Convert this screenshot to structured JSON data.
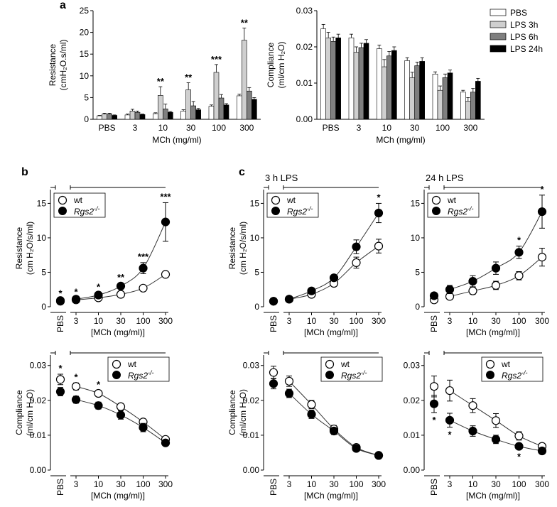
{
  "panel_labels": {
    "a": "a",
    "b": "b",
    "c": "c"
  },
  "colors": {
    "PBS": "#ffffff",
    "LPS 3h": "#cfcfcf",
    "LPS 6h": "#7f7f7f",
    "LPS 24h": "#000000"
  },
  "chart_data": [
    {
      "id": "a-resistance",
      "type": "bar",
      "panel": "a",
      "title": "",
      "xlabel": "MCh (mg/ml)",
      "ylabel": "Resistance",
      "ylabel2": "(cmH₂O.s/ml)",
      "categories": [
        "PBS",
        "3",
        "10",
        "30",
        "100",
        "300"
      ],
      "ylim": [
        0,
        25
      ],
      "yticks": [
        0,
        5,
        10,
        15,
        20,
        25
      ],
      "series": [
        {
          "name": "PBS",
          "values": [
            0.8,
            1.0,
            1.3,
            1.9,
            3.0,
            5.4
          ],
          "errors": [
            0.1,
            0.2,
            0.2,
            0.3,
            0.3,
            0.4
          ]
        },
        {
          "name": "LPS 3h",
          "values": [
            1.2,
            1.9,
            5.5,
            6.8,
            10.8,
            18.2
          ],
          "errors": [
            0.2,
            0.4,
            2.0,
            1.6,
            1.8,
            2.8
          ]
        },
        {
          "name": "LPS 6h",
          "values": [
            1.2,
            1.6,
            2.4,
            3.1,
            4.9,
            6.5
          ],
          "errors": [
            0.2,
            0.3,
            1.1,
            1.0,
            0.8,
            0.8
          ]
        },
        {
          "name": "LPS 24h",
          "values": [
            0.9,
            1.1,
            1.6,
            2.2,
            3.3,
            4.6
          ],
          "errors": [
            0.1,
            0.1,
            0.2,
            0.3,
            0.3,
            0.4
          ]
        }
      ],
      "annotations": [
        {
          "text": "**",
          "category": 2,
          "series": 1
        },
        {
          "text": "**",
          "category": 3,
          "series": 1
        },
        {
          "text": "***",
          "category": 4,
          "series": 1
        },
        {
          "text": "**",
          "category": 5,
          "series": 1
        }
      ]
    },
    {
      "id": "a-compliance",
      "type": "bar",
      "panel": "a",
      "title": "",
      "xlabel": "MCh (mg/ml)",
      "ylabel": "Compliance",
      "ylabel2": "(ml/cm H₂O)",
      "categories": [
        "PBS",
        "3",
        "10",
        "30",
        "100",
        "300"
      ],
      "ylim": [
        0,
        0.03
      ],
      "yticks": [
        0.0,
        0.01,
        0.02,
        0.03
      ],
      "ytick_labels": [
        "0.00",
        "0.01",
        "0.02",
        "0.03"
      ],
      "legend": [
        "PBS",
        "LPS 3h",
        "LPS 6h",
        "LPS 24h"
      ],
      "series": [
        {
          "name": "PBS",
          "values": [
            0.025,
            0.0225,
            0.0195,
            0.0162,
            0.0125,
            0.0075
          ],
          "errors": [
            0.0012,
            0.001,
            0.001,
            0.0008,
            0.0006,
            0.0005
          ]
        },
        {
          "name": "LPS 3h",
          "values": [
            0.0225,
            0.0185,
            0.0145,
            0.0115,
            0.008,
            0.005
          ],
          "errors": [
            0.0015,
            0.0015,
            0.002,
            0.0015,
            0.0012,
            0.001
          ]
        },
        {
          "name": "LPS 6h",
          "values": [
            0.0215,
            0.0198,
            0.0175,
            0.0148,
            0.0115,
            0.0075
          ],
          "errors": [
            0.0012,
            0.0012,
            0.0012,
            0.001,
            0.001,
            0.001
          ]
        },
        {
          "name": "LPS 24h",
          "values": [
            0.0225,
            0.021,
            0.019,
            0.016,
            0.0128,
            0.0105
          ],
          "errors": [
            0.001,
            0.001,
            0.001,
            0.001,
            0.0008,
            0.0008
          ]
        }
      ]
    },
    {
      "id": "b-resistance",
      "type": "scatter",
      "panel": "b",
      "title": "",
      "xlabel": "[MCh (mg/ml)]",
      "ylabel": "Resistance",
      "ylabel2": "(cm H₂O/s/ml)",
      "pbs_label": "PBS",
      "x_ticks": [
        "3",
        "10",
        "30",
        "100",
        "300"
      ],
      "ylim": [
        0,
        17
      ],
      "yticks": [
        0,
        5,
        10,
        15
      ],
      "legend": [
        "wt",
        "Rgs2"
      ],
      "legend_sup": "-/-",
      "series": [
        {
          "name": "wt",
          "pbs": 0.8,
          "pbs_err": 0.2,
          "values": [
            1.0,
            1.3,
            1.8,
            2.7,
            4.7
          ],
          "errors": [
            0.2,
            0.2,
            0.3,
            0.3,
            0.4
          ]
        },
        {
          "name": "Rgs2",
          "pbs": 0.9,
          "pbs_err": 0.2,
          "values": [
            1.1,
            1.7,
            3.0,
            5.6,
            12.3
          ],
          "errors": [
            0.2,
            0.3,
            0.4,
            0.8,
            2.8
          ]
        }
      ],
      "annotations": [
        {
          "text": "*",
          "index": -1
        },
        {
          "text": "*",
          "index": 0
        },
        {
          "text": "*",
          "index": 1
        },
        {
          "text": "**",
          "index": 2
        },
        {
          "text": "***",
          "index": 3
        },
        {
          "text": "***",
          "index": 4
        }
      ]
    },
    {
      "id": "c3-resistance",
      "type": "scatter",
      "panel": "c",
      "title": "3 h LPS",
      "xlabel": "[MCh (mg/ml)]",
      "ylabel": "Resistance",
      "ylabel2": "(cm H₂O/s/ml)",
      "pbs_label": "PBS",
      "x_ticks": [
        "3",
        "10",
        "30",
        "100",
        "300"
      ],
      "ylim": [
        0,
        17
      ],
      "yticks": [
        0,
        5,
        10,
        15
      ],
      "legend": [
        "wt",
        "Rgs2"
      ],
      "legend_sup": "-/-",
      "series": [
        {
          "name": "wt",
          "pbs": 0.8,
          "pbs_err": 0.2,
          "values": [
            1.1,
            1.8,
            3.4,
            6.4,
            8.8
          ],
          "errors": [
            0.2,
            0.2,
            0.4,
            0.8,
            1.0
          ]
        },
        {
          "name": "Rgs2",
          "pbs": 0.8,
          "pbs_err": 0.2,
          "values": [
            1.1,
            2.3,
            4.2,
            8.7,
            13.6
          ],
          "errors": [
            0.2,
            0.3,
            0.4,
            1.0,
            1.4
          ]
        }
      ],
      "annotations": [
        {
          "text": "*",
          "index": 4
        }
      ]
    },
    {
      "id": "c24-resistance",
      "type": "scatter",
      "panel": "c",
      "title": "24 h LPS",
      "xlabel": "[MCh (mg/ml)]",
      "ylabel": "",
      "ylabel2": "",
      "pbs_label": "PBS",
      "x_ticks": [
        "3",
        "10",
        "30",
        "100",
        "300"
      ],
      "ylim": [
        0,
        17
      ],
      "yticks": [
        0,
        5,
        10,
        15
      ],
      "legend": [
        "wt",
        "Rgs2"
      ],
      "legend_sup": "-/-",
      "series": [
        {
          "name": "wt",
          "pbs": 1.0,
          "pbs_err": 0.3,
          "values": [
            1.5,
            2.3,
            3.1,
            4.5,
            7.2
          ],
          "errors": [
            0.4,
            0.5,
            0.6,
            0.6,
            1.3
          ]
        },
        {
          "name": "Rgs2",
          "pbs": 1.6,
          "pbs_err": 0.3,
          "values": [
            2.5,
            3.7,
            5.6,
            7.9,
            13.8
          ],
          "errors": [
            0.6,
            0.8,
            0.9,
            0.9,
            2.4
          ]
        }
      ],
      "annotations": [
        {
          "text": "*",
          "index": 3
        },
        {
          "text": "*",
          "index": 4
        }
      ]
    },
    {
      "id": "b-compliance",
      "type": "scatter",
      "panel": "b",
      "title": "",
      "xlabel": "[MCh (mg/ml)]",
      "ylabel": "Compliance",
      "ylabel2": "(ml/cm H₂O)",
      "pbs_label": "PBS",
      "x_ticks": [
        "3",
        "10",
        "30",
        "100",
        "300"
      ],
      "ylim": [
        0,
        0.033
      ],
      "yticks": [
        0.0,
        0.01,
        0.02,
        0.03
      ],
      "ytick_labels": [
        "0.00",
        "0.01",
        "0.02",
        "0.03"
      ],
      "legend": [
        "wt",
        "Rgs2"
      ],
      "legend_sup": "-/-",
      "series": [
        {
          "name": "wt",
          "pbs": 0.026,
          "pbs_err": 0.0015,
          "values": [
            0.024,
            0.022,
            0.0182,
            0.0138,
            0.0088
          ],
          "errors": [
            0.001,
            0.0008,
            0.0008,
            0.0008,
            0.0006
          ]
        },
        {
          "name": "Rgs2",
          "pbs": 0.0225,
          "pbs_err": 0.0012,
          "values": [
            0.0202,
            0.0185,
            0.0158,
            0.0122,
            0.0078
          ],
          "errors": [
            0.001,
            0.001,
            0.0012,
            0.0012,
            0.0008
          ]
        }
      ],
      "annotations": [
        {
          "text": "*",
          "index": -1
        },
        {
          "text": "*",
          "index": 0
        },
        {
          "text": "*",
          "index": 1
        }
      ]
    },
    {
      "id": "c3-compliance",
      "type": "scatter",
      "panel": "c",
      "title": "",
      "xlabel": "[MCh (mg/ml)]",
      "ylabel": "Compliance",
      "ylabel2": "(ml/cm H₂O)",
      "pbs_label": "PBS",
      "x_ticks": [
        "3",
        "10",
        "30",
        "100",
        "300"
      ],
      "ylim": [
        0,
        0.033
      ],
      "yticks": [
        0.0,
        0.01,
        0.02,
        0.03
      ],
      "ytick_labels": [
        "0.00",
        "0.01",
        "0.02",
        "0.03"
      ],
      "legend": [
        "wt",
        "Rgs2"
      ],
      "legend_sup": "-/-",
      "series": [
        {
          "name": "wt",
          "pbs": 0.028,
          "pbs_err": 0.0018,
          "values": [
            0.0255,
            0.0188,
            0.0118,
            0.0065,
            0.0042
          ],
          "errors": [
            0.0015,
            0.0012,
            0.001,
            0.0008,
            0.0006
          ]
        },
        {
          "name": "Rgs2",
          "pbs": 0.0248,
          "pbs_err": 0.0015,
          "values": [
            0.022,
            0.016,
            0.0112,
            0.0062,
            0.0042
          ],
          "errors": [
            0.0012,
            0.0012,
            0.001,
            0.0008,
            0.0006
          ]
        }
      ],
      "annotations": []
    },
    {
      "id": "c24-compliance",
      "type": "scatter",
      "panel": "c",
      "title": "",
      "xlabel": "[MCh (mg/ml)]",
      "ylabel": "",
      "ylabel2": "",
      "pbs_label": "PBS",
      "x_ticks": [
        "3",
        "10",
        "30",
        "100",
        "300"
      ],
      "ylim": [
        0,
        0.033
      ],
      "yticks": [
        0.0,
        0.01,
        0.02,
        0.03
      ],
      "ytick_labels": [
        "0.00",
        "0.01",
        "0.02",
        "0.03"
      ],
      "legend": [
        "wt",
        "Rgs2"
      ],
      "legend_sup": "-/-",
      "series": [
        {
          "name": "wt",
          "pbs": 0.024,
          "pbs_err": 0.003,
          "values": [
            0.0228,
            0.0185,
            0.0142,
            0.0098,
            0.0068
          ],
          "errors": [
            0.003,
            0.002,
            0.002,
            0.0012,
            0.0008
          ]
        },
        {
          "name": "Rgs2",
          "pbs": 0.019,
          "pbs_err": 0.0025,
          "values": [
            0.0143,
            0.0112,
            0.0088,
            0.0068,
            0.0055
          ],
          "errors": [
            0.002,
            0.0015,
            0.0012,
            0.0008,
            0.0006
          ]
        }
      ],
      "annotations": [
        {
          "text": "*",
          "index": -1,
          "below": true
        },
        {
          "text": "*",
          "index": 0,
          "below": true
        },
        {
          "text": "*",
          "index": 3,
          "below": true
        }
      ]
    }
  ]
}
